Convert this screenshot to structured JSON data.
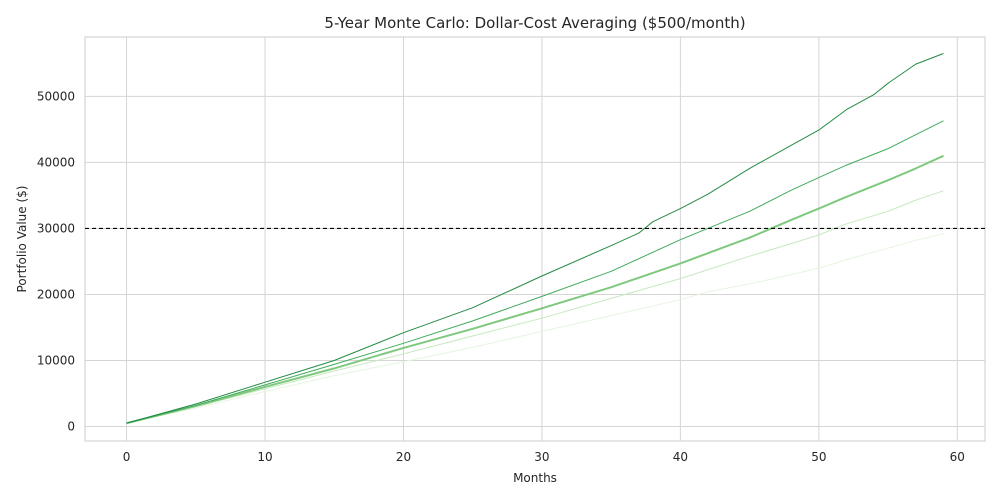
{
  "chart_data": {
    "type": "line",
    "title": "5-Year Monte Carlo: Dollar-Cost Averaging ($500/month)",
    "xlabel": "Months",
    "ylabel": "Portfolio Value ($)",
    "xlim": [
      -3,
      62.0
    ],
    "ylim": [
      -2200,
      59000
    ],
    "xticks": [
      0,
      10,
      20,
      30,
      40,
      50,
      60
    ],
    "yticks": [
      0,
      10000,
      20000,
      30000,
      40000,
      50000
    ],
    "grid": true,
    "reference_line": {
      "y": 30000,
      "style": "dashed",
      "color": "#000000"
    },
    "series_x": "0..59 (monthly)",
    "series": [
      {
        "color": "#e5f5e0",
        "width": 1,
        "points": [
          [
            0,
            500
          ],
          [
            5,
            2800
          ],
          [
            10,
            5300
          ],
          [
            15,
            7700
          ],
          [
            20,
            9800
          ],
          [
            25,
            12000
          ],
          [
            30,
            14400
          ],
          [
            35,
            16800
          ],
          [
            40,
            19200
          ],
          [
            42,
            20400
          ],
          [
            45,
            21600
          ],
          [
            48,
            23000
          ],
          [
            50,
            24000
          ],
          [
            51,
            24600
          ],
          [
            52,
            25300
          ],
          [
            55,
            27000
          ],
          [
            57,
            28200
          ],
          [
            59,
            29200
          ]
        ]
      },
      {
        "color": "#c7e9c0",
        "width": 1,
        "points": [
          [
            0,
            500
          ],
          [
            5,
            3000
          ],
          [
            10,
            5700
          ],
          [
            15,
            8400
          ],
          [
            20,
            11000
          ],
          [
            25,
            13700
          ],
          [
            30,
            16400
          ],
          [
            35,
            19400
          ],
          [
            40,
            22400
          ],
          [
            45,
            25800
          ],
          [
            48,
            27700
          ],
          [
            50,
            29000
          ],
          [
            52,
            30700
          ],
          [
            55,
            32600
          ],
          [
            57,
            34300
          ],
          [
            59,
            35700
          ]
        ]
      },
      {
        "color": "#7fc97f",
        "width": 2,
        "points": [
          [
            0,
            500
          ],
          [
            5,
            3100
          ],
          [
            10,
            6000
          ],
          [
            15,
            8800
          ],
          [
            20,
            11900
          ],
          [
            25,
            14800
          ],
          [
            30,
            17900
          ],
          [
            35,
            21100
          ],
          [
            40,
            24700
          ],
          [
            45,
            28600
          ],
          [
            48,
            31300
          ],
          [
            50,
            33000
          ],
          [
            52,
            34800
          ],
          [
            55,
            37300
          ],
          [
            57,
            39100
          ],
          [
            59,
            41000
          ]
        ]
      },
      {
        "color": "#41ab5d",
        "width": 1,
        "points": [
          [
            0,
            500
          ],
          [
            5,
            3200
          ],
          [
            10,
            6300
          ],
          [
            15,
            9400
          ],
          [
            20,
            12600
          ],
          [
            25,
            16000
          ],
          [
            30,
            19700
          ],
          [
            35,
            23500
          ],
          [
            40,
            28300
          ],
          [
            45,
            32600
          ],
          [
            48,
            35800
          ],
          [
            50,
            37700
          ],
          [
            52,
            39600
          ],
          [
            55,
            42100
          ],
          [
            57,
            44200
          ],
          [
            59,
            46300
          ]
        ]
      },
      {
        "color": "#238b45",
        "width": 1,
        "points": [
          [
            0,
            500
          ],
          [
            5,
            3400
          ],
          [
            10,
            6700
          ],
          [
            15,
            10000
          ],
          [
            20,
            14200
          ],
          [
            25,
            18000
          ],
          [
            30,
            22800
          ],
          [
            35,
            27400
          ],
          [
            37,
            29300
          ],
          [
            38,
            31000
          ],
          [
            40,
            33000
          ],
          [
            42,
            35200
          ],
          [
            45,
            39100
          ],
          [
            48,
            42600
          ],
          [
            50,
            44900
          ],
          [
            52,
            48000
          ],
          [
            54,
            50300
          ],
          [
            55,
            52000
          ],
          [
            57,
            54900
          ],
          [
            59,
            56500
          ]
        ]
      }
    ]
  }
}
